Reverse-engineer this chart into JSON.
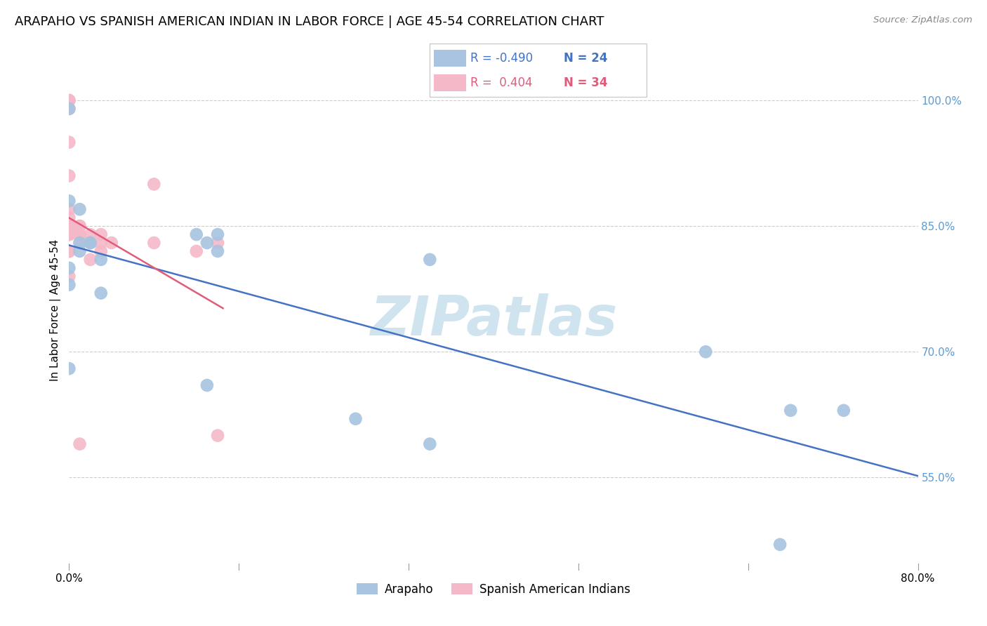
{
  "title": "ARAPAHO VS SPANISH AMERICAN INDIAN IN LABOR FORCE | AGE 45-54 CORRELATION CHART",
  "source": "Source: ZipAtlas.com",
  "ylabel": "In Labor Force | Age 45-54",
  "ytick_labels": [
    "55.0%",
    "70.0%",
    "85.0%",
    "100.0%"
  ],
  "ytick_values": [
    0.55,
    0.7,
    0.85,
    1.0
  ],
  "xlim": [
    0.0,
    0.8
  ],
  "ylim": [
    0.44,
    1.06
  ],
  "legend_blue_r": "-0.490",
  "legend_blue_n": "24",
  "legend_pink_r": "0.404",
  "legend_pink_n": "34",
  "arapaho_x": [
    0.0,
    0.0,
    0.01,
    0.01,
    0.02,
    0.02,
    0.03,
    0.03,
    0.12,
    0.13,
    0.13,
    0.14,
    0.14,
    0.27,
    0.34,
    0.34,
    0.6,
    0.67,
    0.68,
    0.73,
    0.0,
    0.0,
    0.0,
    0.01
  ],
  "arapaho_y": [
    0.99,
    0.88,
    0.87,
    0.83,
    0.83,
    0.83,
    0.81,
    0.77,
    0.84,
    0.83,
    0.66,
    0.84,
    0.82,
    0.62,
    0.59,
    0.81,
    0.7,
    0.47,
    0.63,
    0.63,
    0.8,
    0.78,
    0.68,
    0.82
  ],
  "spanish_x": [
    0.0,
    0.0,
    0.0,
    0.0,
    0.0,
    0.0,
    0.0,
    0.0,
    0.0,
    0.0,
    0.0,
    0.0,
    0.0,
    0.0,
    0.0,
    0.01,
    0.01,
    0.01,
    0.01,
    0.01,
    0.01,
    0.02,
    0.02,
    0.02,
    0.03,
    0.03,
    0.03,
    0.04,
    0.08,
    0.08,
    0.12,
    0.14,
    0.14,
    0.0
  ],
  "spanish_y": [
    1.0,
    1.0,
    0.99,
    0.95,
    0.91,
    0.87,
    0.86,
    0.85,
    0.85,
    0.84,
    0.84,
    0.84,
    0.82,
    0.82,
    0.82,
    0.85,
    0.85,
    0.84,
    0.84,
    0.83,
    0.59,
    0.84,
    0.83,
    0.81,
    0.84,
    0.83,
    0.82,
    0.83,
    0.9,
    0.83,
    0.82,
    0.83,
    0.6,
    0.79
  ],
  "arapaho_color": "#a8c4e0",
  "spanish_color": "#f4b8c8",
  "arapaho_line_color": "#4472c4",
  "spanish_line_color": "#e05c7a",
  "watermark": "ZIPatlas",
  "watermark_color": "#d0e4f0",
  "background_color": "#ffffff",
  "grid_color": "#cccccc",
  "title_fontsize": 13,
  "axis_label_fontsize": 11,
  "tick_fontsize": 11,
  "legend_fontsize": 13,
  "blue_tick_color": "#5b9bd5"
}
